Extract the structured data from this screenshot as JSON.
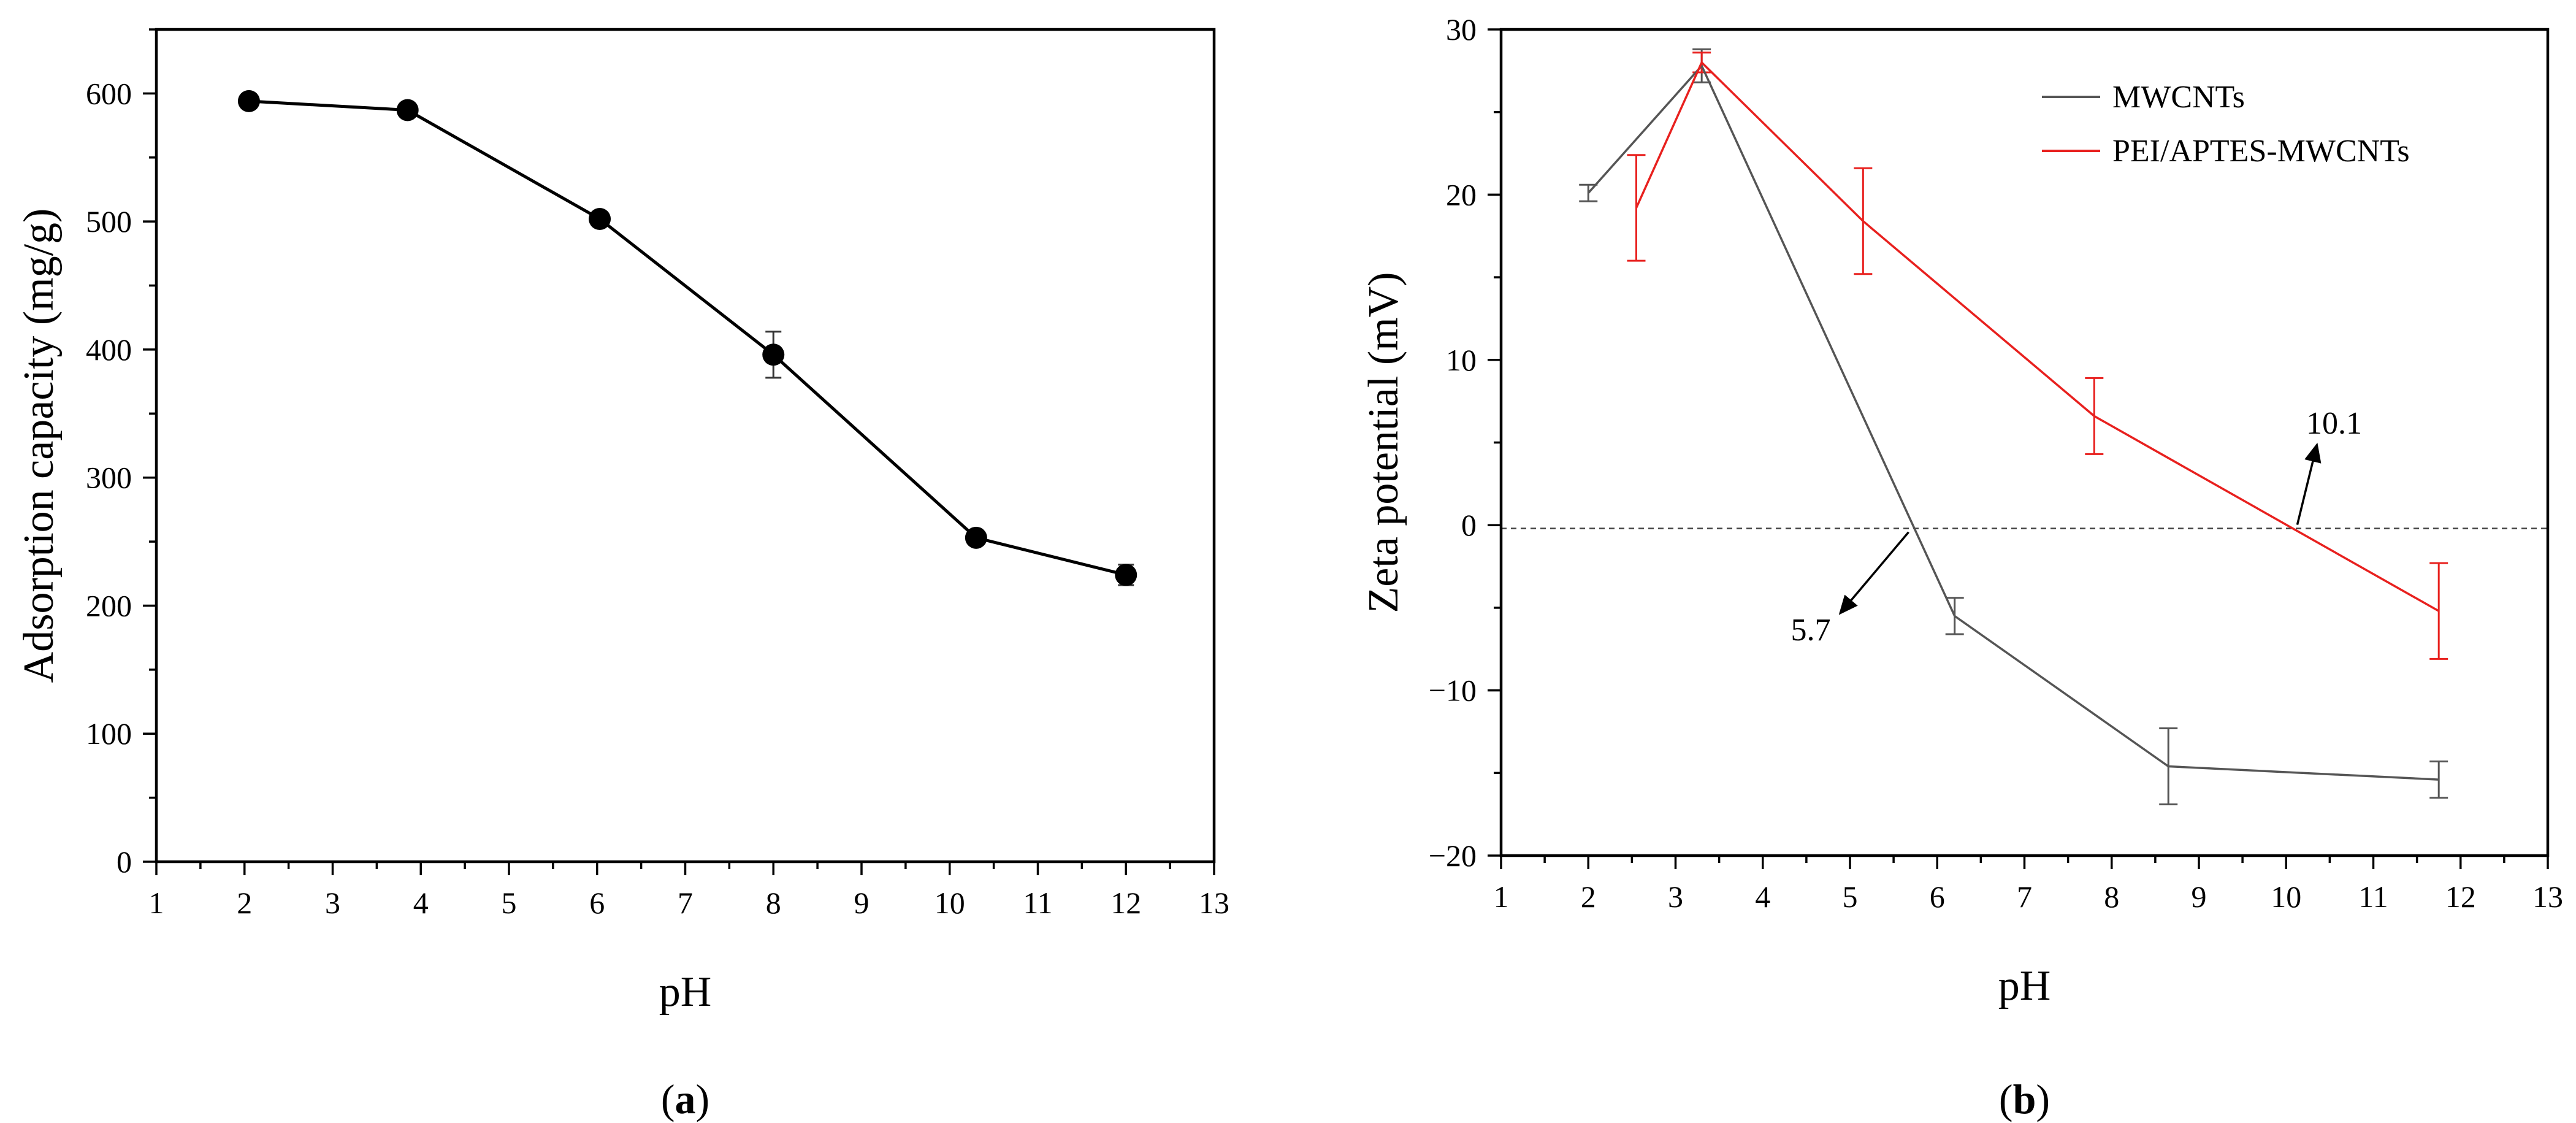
{
  "chart_data": [
    {
      "panel": "(a)",
      "panel_parts": [
        "(",
        "a",
        ")"
      ],
      "type": "scatter",
      "xlabel": "pH",
      "ylabel": "Adsorption capacity (mg/g)",
      "xlim": [
        1,
        13
      ],
      "ylim": [
        0,
        650
      ],
      "xticks": [
        1,
        2,
        3,
        4,
        5,
        6,
        7,
        8,
        9,
        10,
        11,
        12,
        13
      ],
      "yticks": [
        0,
        100,
        200,
        300,
        400,
        500,
        600
      ],
      "grid": false,
      "series": [
        {
          "x": [
            2.05,
            3.85,
            6.03,
            8.0,
            10.3,
            12.0
          ],
          "y": [
            594,
            587,
            502,
            396,
            253,
            224
          ],
          "err": [
            3,
            4,
            4,
            18,
            4,
            8
          ],
          "color": "#000000",
          "marker": "filled-circle"
        }
      ]
    },
    {
      "panel": "(b)",
      "panel_parts": [
        "(",
        "b",
        ")"
      ],
      "type": "line",
      "xlabel": "pH",
      "ylabel": "Zeta potential (mV)",
      "xlim": [
        1,
        13
      ],
      "ylim": [
        -20,
        30
      ],
      "xticks": [
        1,
        2,
        3,
        4,
        5,
        6,
        7,
        8,
        9,
        10,
        11,
        12,
        13
      ],
      "yticks": [
        -20,
        -10,
        0,
        10,
        20,
        30
      ],
      "grid": false,
      "legend_position": "top-right",
      "reference_line_y": -0.2,
      "series": [
        {
          "name": "MWCNTs",
          "color": "#555555",
          "x": [
            2.0,
            3.3,
            6.2,
            8.65,
            11.75
          ],
          "y": [
            20.1,
            27.8,
            -5.5,
            -14.6,
            -15.4
          ],
          "err": [
            0.5,
            1.0,
            1.1,
            2.3,
            1.1
          ]
        },
        {
          "name": "PEI/APTES-MWCNTs",
          "color": "#e8201e",
          "x": [
            2.55,
            3.3,
            5.15,
            7.8,
            11.75
          ],
          "y": [
            19.2,
            28.0,
            18.4,
            6.6,
            -5.2
          ],
          "err": [
            3.2,
            0.6,
            3.2,
            2.3,
            2.9
          ]
        }
      ],
      "annotations": [
        {
          "text": "5.7",
          "x": 5.7,
          "y": -0.2,
          "label_x": 4.55,
          "label_y": -6.3
        },
        {
          "text": "10.1",
          "x": 10.1,
          "y": -0.2,
          "label_x": 10.55,
          "label_y": 6.2
        }
      ]
    }
  ]
}
